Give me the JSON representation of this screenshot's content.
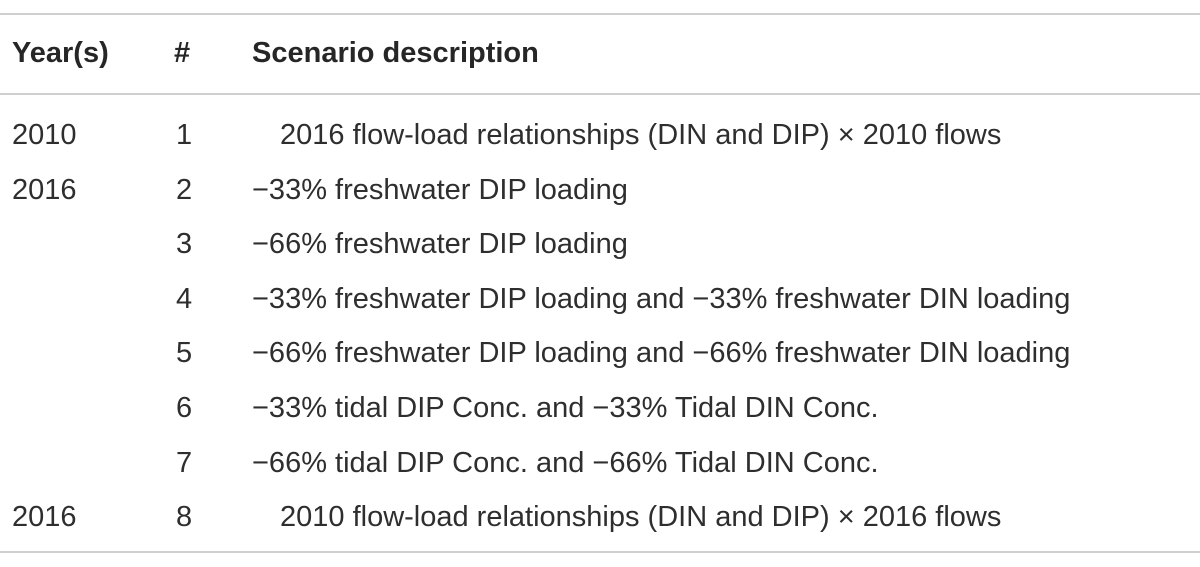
{
  "table": {
    "headers": {
      "year": "Year(s)",
      "number": "#",
      "description": "Scenario description"
    },
    "rows": [
      {
        "year": "2010",
        "number": "1",
        "description": "2016 flow-load relationships (DIN and DIP) × 2010 flows",
        "indented": true
      },
      {
        "year": "2016",
        "number": "2",
        "description": "−33% freshwater DIP loading",
        "indented": false
      },
      {
        "year": "",
        "number": "3",
        "description": "−66% freshwater DIP loading",
        "indented": false
      },
      {
        "year": "",
        "number": "4",
        "description": "−33% freshwater DIP loading and −33% freshwater DIN loading",
        "indented": false
      },
      {
        "year": "",
        "number": "5",
        "description": "−66% freshwater DIP loading and −66% freshwater DIN loading",
        "indented": false
      },
      {
        "year": "",
        "number": "6",
        "description": "−33% tidal DIP Conc. and −33% Tidal DIN Conc.",
        "indented": false
      },
      {
        "year": "",
        "number": "7",
        "description": "−66% tidal DIP Conc. and −66% Tidal DIN Conc.",
        "indented": false
      },
      {
        "year": "2016",
        "number": "8",
        "description": "2010 flow-load relationships (DIN and DIP) × 2016 flows",
        "indented": true
      }
    ]
  }
}
